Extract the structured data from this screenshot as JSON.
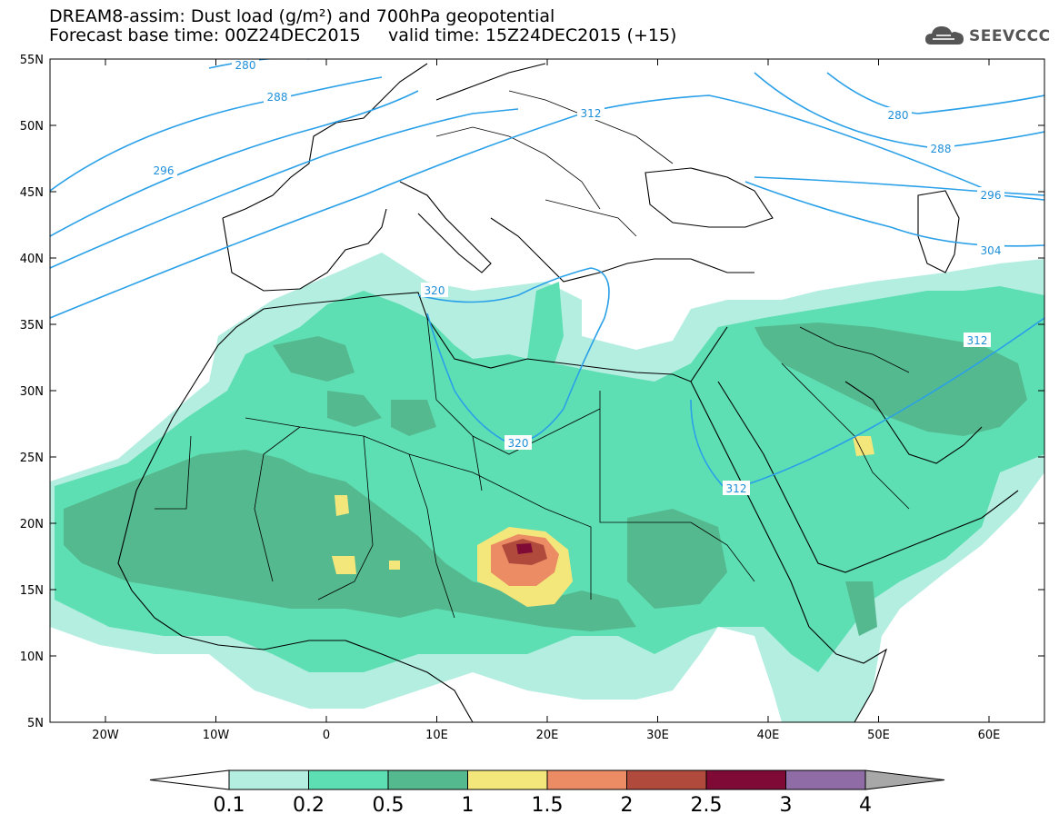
{
  "title": {
    "line1": "DREAM8-assim: Dust load (g/m²) and 700hPa geopotential",
    "line2": "Forecast base time: 00Z24DEC2015     valid time: 15Z24DEC2015 (+15)"
  },
  "logo": {
    "text": "SEEVCCC",
    "icon": "cloud-icon"
  },
  "axes": {
    "lat_labels": [
      "55N",
      "50N",
      "45N",
      "40N",
      "35N",
      "30N",
      "25N",
      "20N",
      "15N",
      "10N",
      "5N"
    ],
    "lon_labels": [
      "20W",
      "10W",
      "0",
      "10E",
      "20E",
      "30E",
      "40E",
      "50E",
      "60E"
    ]
  },
  "contours": {
    "color": "#2aa0e8",
    "labels": [
      "280",
      "288",
      "296",
      "312",
      "320",
      "320",
      "312",
      "280",
      "288",
      "296",
      "304",
      "312"
    ]
  },
  "colorbar": {
    "tick_labels": [
      "0.1",
      "0.2",
      "0.5",
      "1",
      "1.5",
      "2",
      "2.5",
      "3",
      "4"
    ],
    "colors": [
      "#b4eee0",
      "#5edfb3",
      "#55b98f",
      "#f3e77c",
      "#eb8c64",
      "#b04a3c",
      "#7e0a35",
      "#8f6ca5",
      "#a8a8a8"
    ]
  }
}
